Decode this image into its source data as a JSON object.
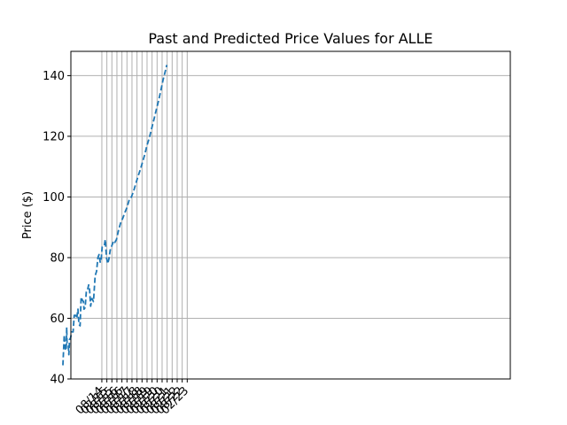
{
  "chart_data": {
    "type": "line",
    "title": "Past and Predicted Price Values for ALLE",
    "xlabel": "",
    "ylabel": "Price ($)",
    "ylim": [
      40,
      148
    ],
    "grid": true,
    "x_ticks": [
      "08/14",
      "02/15",
      "08/15",
      "02/16",
      "08/16",
      "02/17",
      "08/17",
      "02/18",
      "08/18",
      "02/19",
      "08/19",
      "02/20",
      "08/20",
      "02/21",
      "08/21",
      "02/22",
      "08/22",
      "02/23"
    ],
    "y_ticks": [
      40,
      60,
      80,
      100,
      120,
      140
    ],
    "series": [
      {
        "color": "#1f77b4",
        "points": [
          [
            "2013-10-15",
            44.5
          ],
          [
            "2013-12-01",
            54.5
          ],
          [
            "2014-01-15",
            49.5
          ],
          [
            "2014-02-10",
            49.5
          ],
          [
            "2014-03-01",
            57
          ],
          [
            "2014-03-15",
            51.5
          ],
          [
            "2014-05-01",
            51
          ],
          [
            "2014-05-20",
            48
          ],
          [
            "2014-06-15",
            53
          ],
          [
            "2014-07-20",
            53.5
          ],
          [
            "2014-09-01",
            55.5
          ],
          [
            "2014-10-20",
            55.5
          ],
          [
            "2014-12-01",
            61
          ],
          [
            "2015-01-20",
            61
          ],
          [
            "2015-03-01",
            60
          ],
          [
            "2015-04-15",
            63
          ],
          [
            "2015-05-20",
            58
          ],
          [
            "2015-07-01",
            57.5
          ],
          [
            "2015-08-10",
            67
          ],
          [
            "2015-09-20",
            66
          ],
          [
            "2015-11-01",
            65.5
          ],
          [
            "2015-11-20",
            63
          ],
          [
            "2016-01-01",
            63.5
          ],
          [
            "2016-02-15",
            69
          ],
          [
            "2016-04-01",
            69.5
          ],
          [
            "2016-05-10",
            71
          ],
          [
            "2016-06-10",
            69.5
          ],
          [
            "2016-07-20",
            64
          ],
          [
            "2016-09-01",
            66.5
          ],
          [
            "2016-11-01",
            65.5
          ],
          [
            "2017-01-01",
            74
          ],
          [
            "2017-02-20",
            75.5
          ],
          [
            "2017-04-10",
            80
          ],
          [
            "2017-05-20",
            81
          ],
          [
            "2017-07-01",
            78.5
          ],
          [
            "2017-08-01",
            78.5
          ],
          [
            "2017-09-10",
            83.5
          ],
          [
            "2017-10-20",
            84
          ],
          [
            "2017-12-01",
            84
          ],
          [
            "2018-01-01",
            86
          ],
          [
            "2018-02-15",
            80
          ],
          [
            "2018-04-01",
            78
          ],
          [
            "2018-05-15",
            79.5
          ],
          [
            "2018-07-01",
            82.5
          ],
          [
            "2018-09-01",
            84
          ],
          [
            "2018-11-01",
            85.5
          ],
          [
            "2018-12-15",
            85
          ],
          [
            "2019-02-15",
            86
          ],
          [
            "2019-05-01",
            89
          ],
          [
            "2019-07-15",
            91.5
          ],
          [
            "2019-10-01",
            93
          ],
          [
            "2019-12-20",
            95
          ],
          [
            "2020-03-01",
            96.5
          ],
          [
            "2020-05-20",
            99
          ],
          [
            "2020-08-10",
            100
          ],
          [
            "2020-11-01",
            102
          ],
          [
            "2021-01-20",
            104.5
          ],
          [
            "2021-04-15",
            107
          ],
          [
            "2021-07-01",
            109
          ],
          [
            "2021-09-20",
            111.5
          ],
          [
            "2021-12-10",
            114
          ],
          [
            "2022-03-01",
            117
          ],
          [
            "2022-05-25",
            119.5
          ],
          [
            "2022-08-15",
            122.5
          ],
          [
            "2022-11-05",
            125.5
          ],
          [
            "2023-01-25",
            128.5
          ],
          [
            "2023-04-20",
            131.5
          ],
          [
            "2023-07-15",
            135
          ],
          [
            "2023-10-05",
            138.5
          ],
          [
            "2023-12-25",
            141.5
          ],
          [
            "2024-02-20",
            143.5
          ]
        ]
      }
    ]
  }
}
